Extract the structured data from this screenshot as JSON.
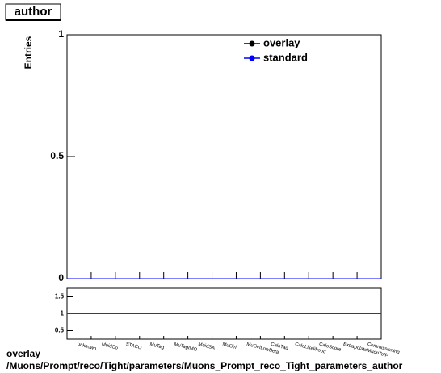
{
  "chart_data": {
    "type": "histogram-ratio",
    "title": "author",
    "y_label": "Entries",
    "categories": [
      "unknown",
      "MuidCo",
      "STACO",
      "MuTag",
      "MuTagIMO",
      "MuidSA",
      "MuGirl",
      "MuGirlLowBeta",
      "CaloTag",
      "CaloLikelihood",
      "CaloScore",
      "ExtrapolateMuonToIP",
      "Commissioning"
    ],
    "series": [
      {
        "name": "overlay",
        "color": "#000000",
        "values": [
          0,
          0,
          0,
          0,
          0,
          0,
          0,
          0,
          0,
          0,
          0,
          0,
          0
        ]
      },
      {
        "name": "standard",
        "color": "#0000ff",
        "values": [
          0,
          0,
          0,
          0,
          0,
          0,
          0,
          0,
          0,
          0,
          0,
          0,
          0
        ]
      }
    ],
    "ylim": [
      0,
      1
    ],
    "yticks": [
      0,
      0.5,
      1
    ],
    "ratio": {
      "ylim": [
        0.25,
        1.75
      ],
      "yticks": [
        0.5,
        1,
        1.5
      ],
      "reference": 1,
      "color": "#cc0000"
    },
    "footer": [
      "overlay",
      "/Muons/Prompt/reco/Tight/parameters/Muons_Prompt_reco_Tight_parameters_author"
    ]
  }
}
